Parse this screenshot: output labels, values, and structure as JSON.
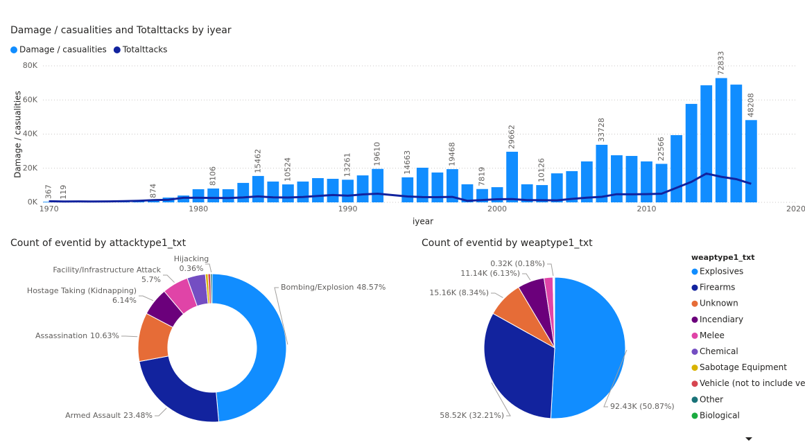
{
  "chart_data": [
    {
      "type": "combo",
      "title": "Damage / casualities and Totalttacks by iyear",
      "x_label": "iyear",
      "y_label": "Damage / casualities",
      "legend": "top-left",
      "grid": true,
      "x": [
        1970,
        1971,
        1972,
        1973,
        1974,
        1975,
        1976,
        1977,
        1978,
        1979,
        1980,
        1981,
        1982,
        1983,
        1984,
        1985,
        1986,
        1987,
        1988,
        1989,
        1990,
        1991,
        1992,
        1994,
        1995,
        1996,
        1997,
        1998,
        1999,
        2000,
        2001,
        2002,
        2003,
        2004,
        2005,
        2006,
        2007,
        2008,
        2009,
        2010,
        2011,
        2012,
        2013,
        2014,
        2015,
        2016,
        2017
      ],
      "series": [
        {
          "name": "Damage / casualities",
          "type": "bar",
          "color": "#118dff",
          "values": [
            367,
            119,
            500,
            500,
            800,
            900,
            1000,
            874,
            2800,
            4000,
            7700,
            8106,
            7700,
            11400,
            15462,
            12200,
            10524,
            12200,
            14200,
            13800,
            13261,
            15800,
            19610,
            14663,
            20300,
            17500,
            19468,
            10600,
            7819,
            8900,
            29662,
            10600,
            10126,
            17000,
            18300,
            24000,
            33728,
            27600,
            27200,
            24000,
            22566,
            39400,
            57700,
            68600,
            72833,
            69000,
            48208
          ],
          "value_labels": [
            "367",
            "119",
            null,
            null,
            null,
            null,
            null,
            "874",
            null,
            null,
            null,
            "8106",
            null,
            null,
            "15462",
            null,
            "10524",
            null,
            null,
            null,
            "13261",
            null,
            "19610",
            "14663",
            null,
            null,
            "19468",
            null,
            "7819",
            null,
            "29662",
            null,
            "10126",
            null,
            null,
            null,
            "33728",
            null,
            null,
            null,
            "22566",
            null,
            null,
            null,
            "72833",
            null,
            "48208"
          ]
        },
        {
          "name": "Totalttacks",
          "type": "line",
          "color": "#12239e",
          "values": [
            651,
            471,
            568,
            473,
            581,
            740,
            923,
            1319,
            1526,
            2662,
            2662,
            2586,
            2544,
            2870,
            3495,
            2915,
            2860,
            3183,
            3721,
            4324,
            3887,
            4683,
            5071,
            3456,
            3081,
            3058,
            3197,
            934,
            1395,
            1814,
            1906,
            1333,
            1278,
            1166,
            2017,
            2758,
            3242,
            4805,
            4721,
            4826,
            5076,
            8522,
            12036,
            16903,
            14965,
            13587,
            10900
          ]
        }
      ],
      "xlim": [
        1969.6,
        2020
      ],
      "xticks": [
        1970,
        1980,
        1990,
        2000,
        2010,
        2020
      ],
      "ylim": [
        0,
        80000
      ],
      "yticks": [
        {
          "value": 0,
          "label": "0K"
        },
        {
          "value": 20000,
          "label": "20K"
        },
        {
          "value": 40000,
          "label": "40K"
        },
        {
          "value": 60000,
          "label": "60K"
        },
        {
          "value": 80000,
          "label": "80K"
        }
      ]
    },
    {
      "type": "donut",
      "title": "Count of eventid by attacktype1_txt",
      "categories": [
        "Bombing/Explosion",
        "Armed Assault",
        "Assassination",
        "Hostage Taking (Kidnapping)",
        "Facility/Infrastructure Attack",
        null,
        null,
        null,
        "Hijacking"
      ],
      "values": [
        48.57,
        23.48,
        10.63,
        6.14,
        5.7,
        4.0,
        0.56,
        0.55,
        0.36
      ],
      "value_labels": [
        "48.57%",
        "23.48%",
        "10.63%",
        "6.14%",
        "5.7%",
        null,
        null,
        null,
        "0.36%"
      ],
      "colors": [
        "#118dff",
        "#12239e",
        "#e66c37",
        "#6b007b",
        "#e044a7",
        "#744ec2",
        "#d9b300",
        "#d64550",
        "#197278"
      ]
    },
    {
      "type": "pie",
      "title": "Count of eventid by weaptype1_txt",
      "legend_title": "weaptype1_txt",
      "legend": "right",
      "categories": [
        "Explosives",
        "Firearms",
        "Unknown",
        "Incendiary",
        "Melee",
        "Chemical",
        "Sabotage Equipment",
        "Vehicle (not to include ve...",
        "Other",
        "Biological"
      ],
      "values": [
        92.43,
        58.52,
        15.16,
        11.14,
        3.66,
        0.32,
        0.14,
        0.14,
        0.11,
        0.04
      ],
      "value_labels": [
        "92.43K (50.87%)",
        "58.52K (32.21%)",
        "15.16K (8.34%)",
        "11.14K (6.13%)",
        null,
        "0.32K (0.18%)",
        null,
        null,
        null,
        null
      ],
      "colors": [
        "#118dff",
        "#12239e",
        "#e66c37",
        "#6b007b",
        "#e044a7",
        "#744ec2",
        "#d9b300",
        "#d64550",
        "#197278",
        "#1aab40"
      ]
    }
  ]
}
